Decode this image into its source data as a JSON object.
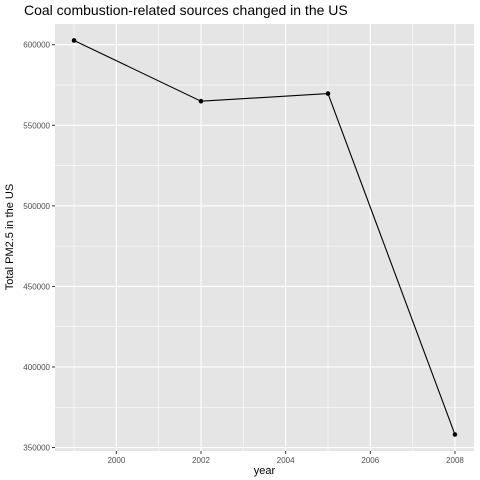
{
  "chart_data": {
    "type": "line",
    "title": "Coal combustion-related sources changed in the US",
    "xlabel": "year",
    "ylabel": "Total PM2.5 in the US",
    "x": [
      1999,
      2002,
      2005,
      2008
    ],
    "y": [
      602624,
      564936,
      569654,
      358084
    ],
    "xlim": [
      1998.55,
      2008.45
    ],
    "ylim": [
      347850,
      612850
    ],
    "x_ticks": [
      2000,
      2002,
      2004,
      2006,
      2008
    ],
    "x_tick_labels": [
      "2000",
      "2002",
      "2004",
      "2006",
      "2008"
    ],
    "y_ticks": [
      350000,
      400000,
      450000,
      500000,
      550000,
      600000
    ],
    "y_tick_labels": [
      "350000",
      "400000",
      "450000",
      "500000",
      "550000",
      "600000"
    ],
    "panel_background": "#e5e5e5",
    "grid_color": "#ffffff",
    "line_color": "#000000",
    "grid": true
  }
}
